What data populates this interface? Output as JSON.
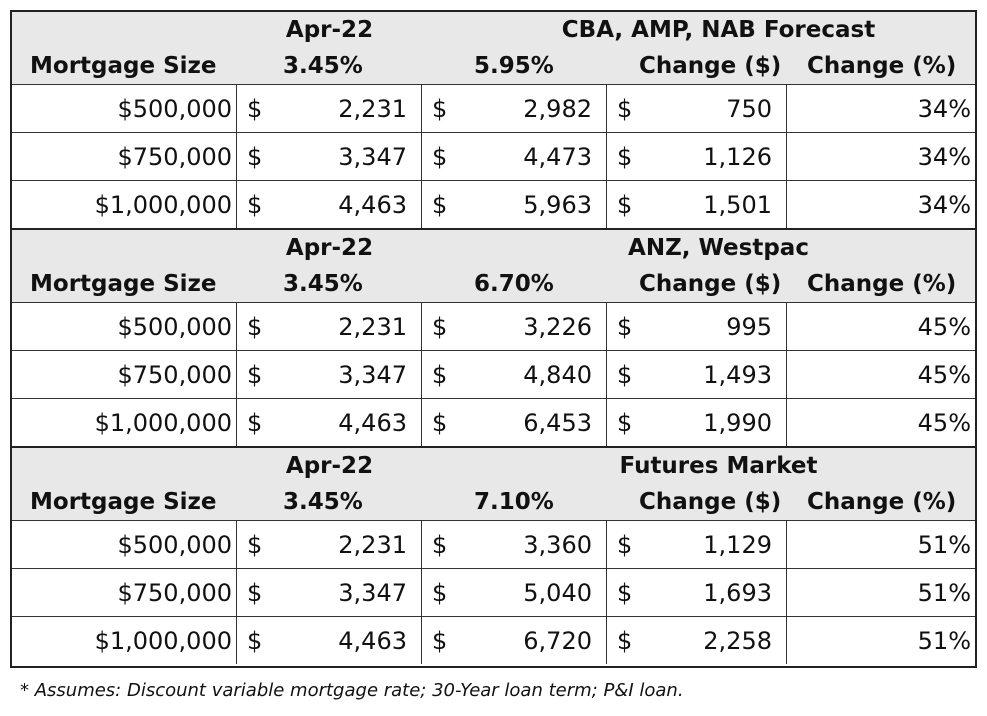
{
  "currency_symbol": "$",
  "sections": [
    {
      "date_label": "Apr-22",
      "scenario": "CBA, AMP, NAB Forecast",
      "size_header": "Mortgage Size",
      "rate_now": "3.45%",
      "rate_forecast": "5.95%",
      "change_dollar_header": "Change ($)",
      "change_pct_header": "Change (%)",
      "rows": [
        {
          "size": "$500,000",
          "current": "2,231",
          "forecast": "2,982",
          "change": "750",
          "pct": "34%"
        },
        {
          "size": "$750,000",
          "current": "3,347",
          "forecast": "4,473",
          "change": "1,126",
          "pct": "34%"
        },
        {
          "size": "$1,000,000",
          "current": "4,463",
          "forecast": "5,963",
          "change": "1,501",
          "pct": "34%"
        }
      ]
    },
    {
      "date_label": "Apr-22",
      "scenario": "ANZ, Westpac",
      "size_header": "Mortgage Size",
      "rate_now": "3.45%",
      "rate_forecast": "6.70%",
      "change_dollar_header": "Change ($)",
      "change_pct_header": "Change (%)",
      "rows": [
        {
          "size": "$500,000",
          "current": "2,231",
          "forecast": "3,226",
          "change": "995",
          "pct": "45%"
        },
        {
          "size": "$750,000",
          "current": "3,347",
          "forecast": "4,840",
          "change": "1,493",
          "pct": "45%"
        },
        {
          "size": "$1,000,000",
          "current": "4,463",
          "forecast": "6,453",
          "change": "1,990",
          "pct": "45%"
        }
      ]
    },
    {
      "date_label": "Apr-22",
      "scenario": "Futures Market",
      "size_header": "Mortgage Size",
      "rate_now": "3.45%",
      "rate_forecast": "7.10%",
      "change_dollar_header": "Change ($)",
      "change_pct_header": "Change (%)",
      "rows": [
        {
          "size": "$500,000",
          "current": "2,231",
          "forecast": "3,360",
          "change": "1,129",
          "pct": "51%"
        },
        {
          "size": "$750,000",
          "current": "3,347",
          "forecast": "5,040",
          "change": "1,693",
          "pct": "51%"
        },
        {
          "size": "$1,000,000",
          "current": "4,463",
          "forecast": "6,720",
          "change": "2,258",
          "pct": "51%"
        }
      ]
    }
  ],
  "footnote": "* Assumes: Discount variable mortgage rate; 30-Year loan term; P&I loan."
}
